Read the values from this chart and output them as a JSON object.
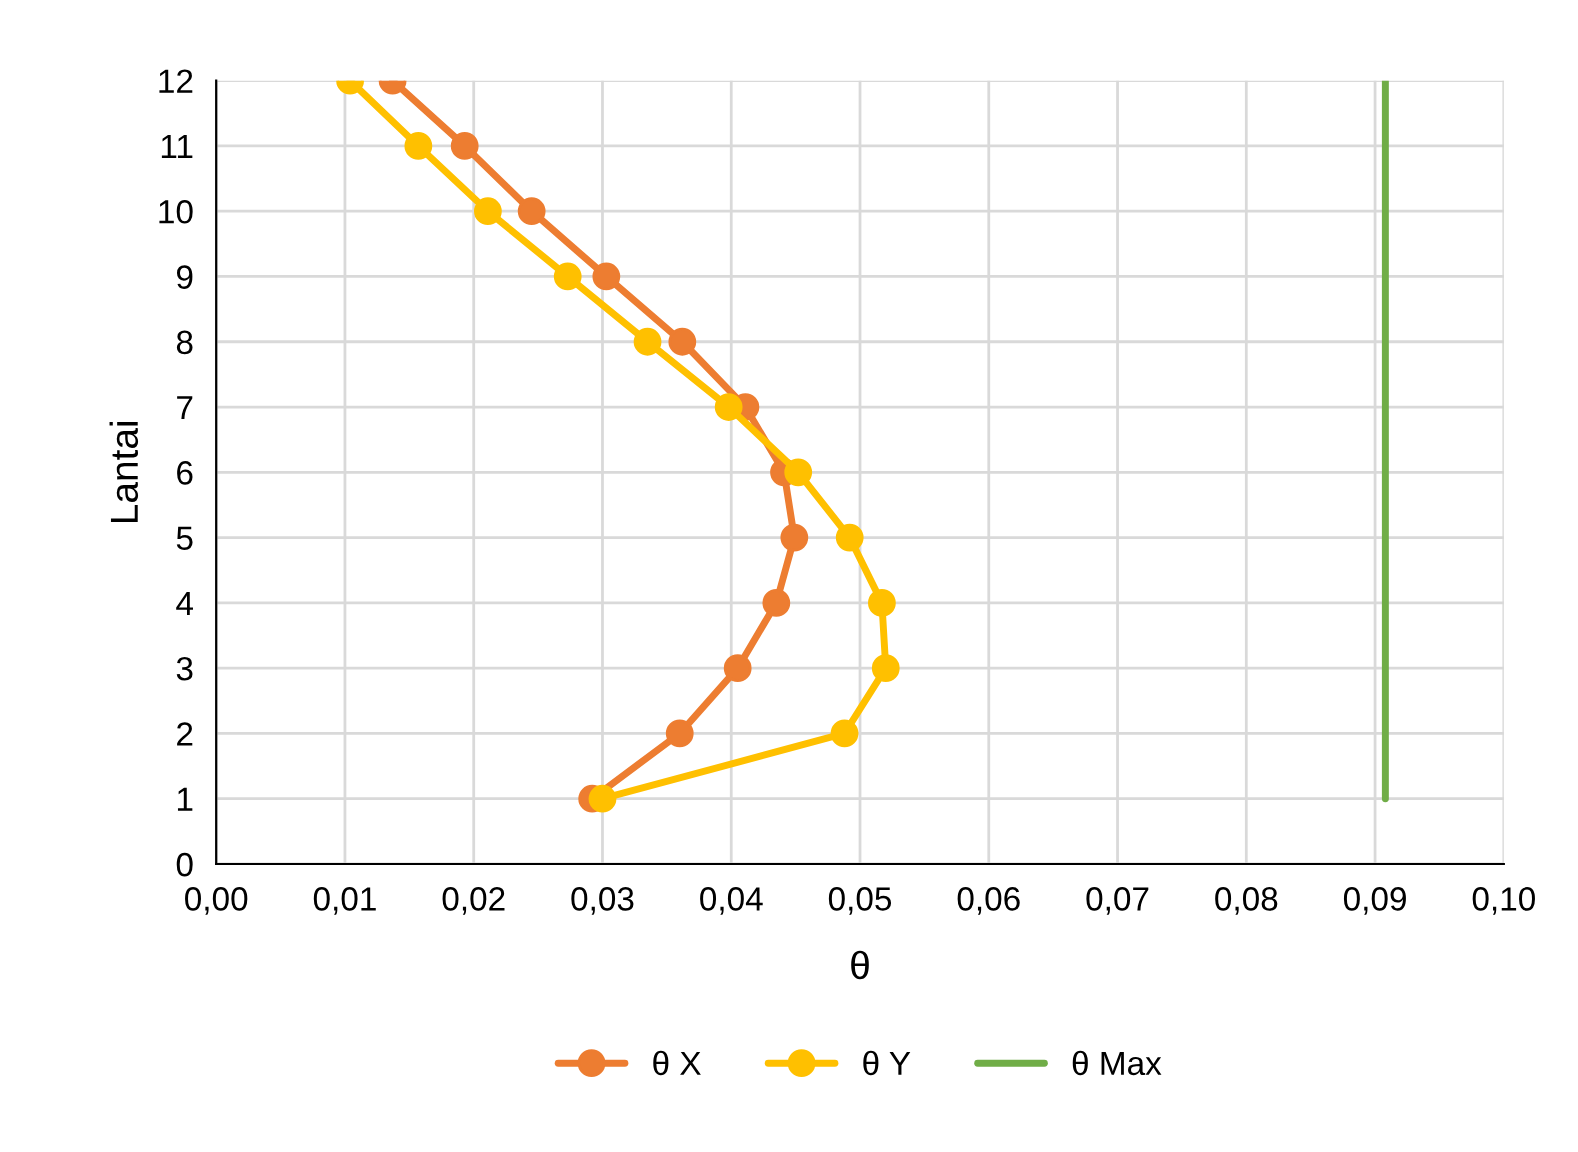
{
  "chart_data": {
    "type": "line",
    "xlabel": "θ",
    "ylabel": "Lantai",
    "series": [
      {
        "name": "θ X",
        "color": "#ed7d31",
        "marker": "circle",
        "x": [
          0.0137,
          0.0193,
          0.0245,
          0.0303,
          0.0362,
          0.0411,
          0.0441,
          0.0449,
          0.0435,
          0.0405,
          0.036,
          0.0292
        ],
        "values": [
          12,
          11,
          10,
          9,
          8,
          7,
          6,
          5,
          4,
          3,
          2,
          1
        ]
      },
      {
        "name": "θ Y",
        "color": "#ffc000",
        "marker": "circle",
        "x": [
          0.0104,
          0.0157,
          0.0211,
          0.0273,
          0.0335,
          0.0398,
          0.0452,
          0.0492,
          0.0517,
          0.052,
          0.0488,
          0.03
        ],
        "values": [
          12,
          11,
          10,
          9,
          8,
          7,
          6,
          5,
          4,
          3,
          2,
          1
        ]
      },
      {
        "name": "θ Max",
        "color": "#70ad47",
        "marker": "none",
        "x": [
          0.0908,
          0.0908
        ],
        "values": [
          1,
          12
        ]
      }
    ],
    "xlim": [
      0,
      0.1
    ],
    "xticks": [
      {
        "value": 0,
        "label": "0,00"
      },
      {
        "value": 0.01,
        "label": "0,01"
      },
      {
        "value": 0.02,
        "label": "0,02"
      },
      {
        "value": 0.03,
        "label": "0,03"
      },
      {
        "value": 0.04,
        "label": "0,04"
      },
      {
        "value": 0.05,
        "label": "0,05"
      },
      {
        "value": 0.06,
        "label": "0,06"
      },
      {
        "value": 0.07,
        "label": "0,07"
      },
      {
        "value": 0.08,
        "label": "0,08"
      },
      {
        "value": 0.09,
        "label": "0,09"
      },
      {
        "value": 0.1,
        "label": "0,10"
      }
    ],
    "ylim": [
      0,
      12
    ],
    "yticks": [
      0,
      1,
      2,
      3,
      4,
      5,
      6,
      7,
      8,
      9,
      10,
      11,
      12
    ],
    "grid": true,
    "legend": "bottom",
    "line_style": "solid"
  }
}
